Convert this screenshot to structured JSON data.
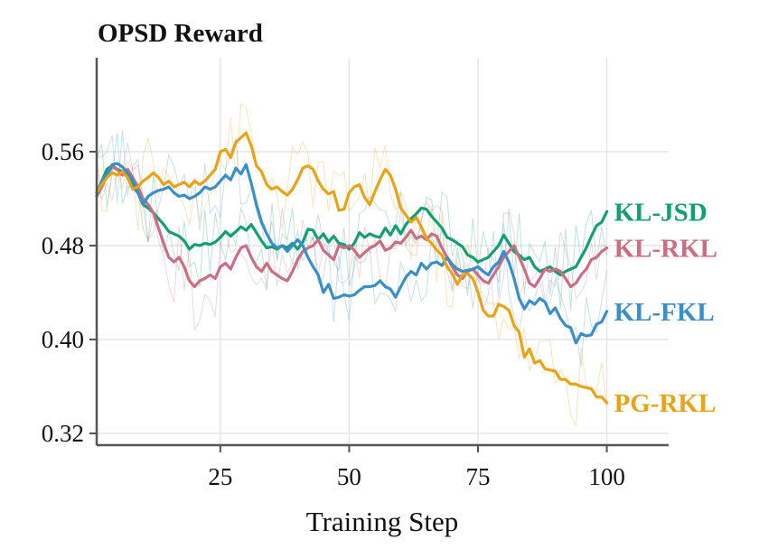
{
  "chart_data": {
    "type": "line",
    "title": "OPSD Reward",
    "xlabel": "Training Step",
    "ylabel": "",
    "xlim": [
      1,
      112
    ],
    "ylim": [
      0.31,
      0.64
    ],
    "xticks": [
      25,
      50,
      75,
      100
    ],
    "yticks": [
      0.32,
      0.4,
      0.48,
      0.56
    ],
    "ytick_labels": [
      "0.32",
      "0.40",
      "0.48",
      "0.56"
    ],
    "xtick_labels": [
      "25",
      "50",
      "75",
      "100"
    ],
    "grid": true,
    "legend": "none; series names printed at the right end of each line",
    "x": [
      1,
      2,
      3,
      4,
      5,
      6,
      7,
      8,
      9,
      10,
      11,
      12,
      13,
      14,
      15,
      16,
      17,
      18,
      19,
      20,
      21,
      22,
      23,
      24,
      25,
      26,
      27,
      28,
      29,
      30,
      31,
      32,
      33,
      34,
      35,
      36,
      37,
      38,
      39,
      40,
      41,
      42,
      43,
      44,
      45,
      46,
      47,
      48,
      49,
      50,
      51,
      52,
      53,
      54,
      55,
      56,
      57,
      58,
      59,
      60,
      61,
      62,
      63,
      64,
      65,
      66,
      67,
      68,
      69,
      70,
      71,
      72,
      73,
      74,
      75,
      76,
      77,
      78,
      79,
      80,
      81,
      82,
      83,
      84,
      85,
      86,
      87,
      88,
      89,
      90,
      91,
      92,
      93,
      94,
      95,
      96,
      97,
      98,
      99,
      100
    ],
    "series": [
      {
        "name": "KL-JSD",
        "color": "#159e74",
        "values": [
          0.525,
          0.535,
          0.545,
          0.548,
          0.545,
          0.543,
          0.54,
          0.53,
          0.525,
          0.515,
          0.512,
          0.508,
          0.503,
          0.498,
          0.492,
          0.49,
          0.488,
          0.484,
          0.477,
          0.481,
          0.48,
          0.482,
          0.481,
          0.483,
          0.487,
          0.492,
          0.488,
          0.492,
          0.496,
          0.493,
          0.498,
          0.491,
          0.484,
          0.478,
          0.479,
          0.477,
          0.48,
          0.478,
          0.482,
          0.477,
          0.483,
          0.494,
          0.493,
          0.485,
          0.49,
          0.483,
          0.488,
          0.482,
          0.481,
          0.477,
          0.482,
          0.491,
          0.487,
          0.49,
          0.488,
          0.487,
          0.495,
          0.489,
          0.497,
          0.49,
          0.498,
          0.503,
          0.507,
          0.512,
          0.511,
          0.505,
          0.5,
          0.495,
          0.487,
          0.485,
          0.482,
          0.479,
          0.472,
          0.47,
          0.466,
          0.468,
          0.47,
          0.475,
          0.48,
          0.489,
          0.482,
          0.475,
          0.472,
          0.468,
          0.47,
          0.462,
          0.458,
          0.46,
          0.462,
          0.458,
          0.455,
          0.458,
          0.46,
          0.462,
          0.47,
          0.478,
          0.488,
          0.497,
          0.5,
          0.509
        ]
      },
      {
        "name": "KL-RKL",
        "color": "#cc6e82",
        "values": [
          0.522,
          0.53,
          0.54,
          0.547,
          0.545,
          0.54,
          0.545,
          0.538,
          0.53,
          0.52,
          0.515,
          0.508,
          0.495,
          0.482,
          0.47,
          0.466,
          0.47,
          0.462,
          0.45,
          0.445,
          0.45,
          0.452,
          0.455,
          0.452,
          0.462,
          0.465,
          0.46,
          0.47,
          0.478,
          0.48,
          0.47,
          0.462,
          0.458,
          0.465,
          0.458,
          0.455,
          0.452,
          0.45,
          0.458,
          0.468,
          0.475,
          0.478,
          0.48,
          0.485,
          0.476,
          0.472,
          0.468,
          0.48,
          0.478,
          0.48,
          0.476,
          0.47,
          0.474,
          0.478,
          0.48,
          0.484,
          0.476,
          0.478,
          0.483,
          0.482,
          0.487,
          0.493,
          0.486,
          0.488,
          0.485,
          0.49,
          0.488,
          0.478,
          0.47,
          0.462,
          0.455,
          0.452,
          0.458,
          0.46,
          0.455,
          0.45,
          0.448,
          0.455,
          0.462,
          0.47,
          0.475,
          0.48,
          0.47,
          0.46,
          0.448,
          0.445,
          0.452,
          0.46,
          0.458,
          0.46,
          0.458,
          0.452,
          0.445,
          0.448,
          0.455,
          0.46,
          0.468,
          0.47,
          0.475,
          0.478
        ]
      },
      {
        "name": "KL-FKL",
        "color": "#3a8fc8",
        "values": [
          0.522,
          0.535,
          0.54,
          0.549,
          0.55,
          0.547,
          0.542,
          0.536,
          0.525,
          0.515,
          0.522,
          0.525,
          0.527,
          0.528,
          0.53,
          0.525,
          0.522,
          0.523,
          0.52,
          0.522,
          0.525,
          0.53,
          0.528,
          0.53,
          0.535,
          0.54,
          0.536,
          0.546,
          0.541,
          0.549,
          0.533,
          0.515,
          0.5,
          0.49,
          0.482,
          0.478,
          0.48,
          0.475,
          0.48,
          0.485,
          0.48,
          0.47,
          0.462,
          0.455,
          0.44,
          0.447,
          0.435,
          0.436,
          0.438,
          0.437,
          0.438,
          0.442,
          0.445,
          0.445,
          0.446,
          0.45,
          0.445,
          0.443,
          0.436,
          0.445,
          0.453,
          0.458,
          0.455,
          0.465,
          0.46,
          0.465,
          0.466,
          0.463,
          0.47,
          0.464,
          0.46,
          0.458,
          0.459,
          0.46,
          0.462,
          0.458,
          0.455,
          0.462,
          0.466,
          0.475,
          0.466,
          0.452,
          0.435,
          0.426,
          0.433,
          0.43,
          0.435,
          0.432,
          0.422,
          0.427,
          0.418,
          0.412,
          0.41,
          0.397,
          0.405,
          0.403,
          0.404,
          0.413,
          0.415,
          0.424
        ]
      },
      {
        "name": "PG-RKL",
        "color": "#e8a317",
        "values": [
          0.525,
          0.532,
          0.538,
          0.542,
          0.54,
          0.543,
          0.538,
          0.528,
          0.53,
          0.535,
          0.538,
          0.542,
          0.538,
          0.532,
          0.535,
          0.53,
          0.532,
          0.534,
          0.53,
          0.535,
          0.532,
          0.535,
          0.54,
          0.545,
          0.56,
          0.562,
          0.555,
          0.568,
          0.572,
          0.576,
          0.565,
          0.548,
          0.543,
          0.532,
          0.528,
          0.53,
          0.526,
          0.523,
          0.528,
          0.536,
          0.546,
          0.548,
          0.545,
          0.535,
          0.528,
          0.524,
          0.526,
          0.51,
          0.511,
          0.525,
          0.53,
          0.532,
          0.521,
          0.515,
          0.526,
          0.536,
          0.545,
          0.54,
          0.528,
          0.512,
          0.506,
          0.5,
          0.504,
          0.496,
          0.486,
          0.482,
          0.476,
          0.472,
          0.462,
          0.456,
          0.447,
          0.455,
          0.456,
          0.452,
          0.44,
          0.425,
          0.42,
          0.42,
          0.43,
          0.428,
          0.425,
          0.412,
          0.406,
          0.385,
          0.392,
          0.38,
          0.382,
          0.375,
          0.374,
          0.373,
          0.366,
          0.366,
          0.362,
          0.362,
          0.36,
          0.359,
          0.358,
          0.351,
          0.351,
          0.346
        ]
      }
    ]
  }
}
